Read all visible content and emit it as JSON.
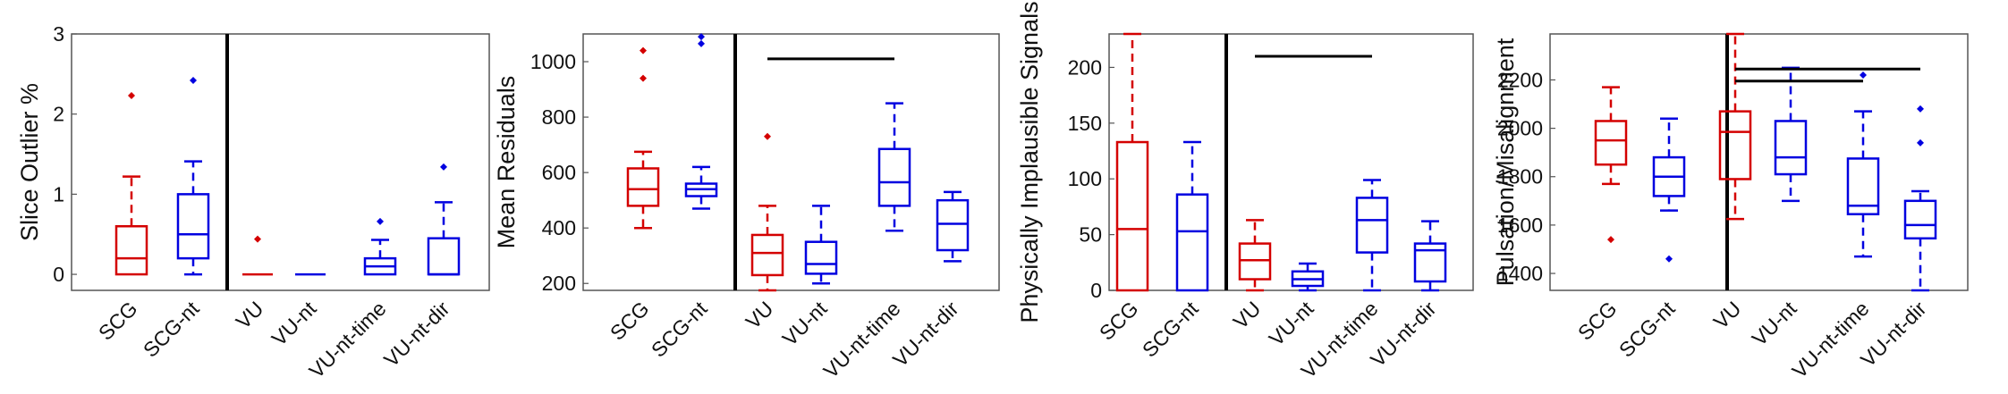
{
  "colors": {
    "SCG": "#d40000",
    "SCG-nt": "#0000e0",
    "VU": "#d40000",
    "VU-nt": "#0000e0",
    "VU-nt-time": "#0000e0",
    "VU-nt-dir": "#0000e0",
    "divider": "#000000",
    "frame": "#555555"
  },
  "chart_data": [
    {
      "type": "box",
      "ylabel": "Slice Outlier %",
      "ylim": [
        -0.2,
        3.0
      ],
      "yticks": [
        0,
        1,
        2,
        3
      ],
      "categories": [
        "SCG",
        "SCG-nt",
        "VU",
        "VU-nt",
        "VU-nt-time",
        "VU-nt-dir"
      ],
      "divider_after": 1,
      "boxes": [
        {
          "q1": 0.0,
          "median": 0.2,
          "q3": 0.6,
          "low": 0.0,
          "high": 1.22,
          "outliers": [
            2.23
          ]
        },
        {
          "q1": 0.2,
          "median": 0.5,
          "q3": 1.0,
          "low": 0.0,
          "high": 1.41,
          "outliers": [
            2.42
          ]
        },
        {
          "q1": 0.0,
          "median": 0.0,
          "q3": 0.0,
          "low": 0.0,
          "high": 0.0,
          "outliers": [
            0.44
          ]
        },
        {
          "q1": 0.0,
          "median": 0.0,
          "q3": 0.0,
          "low": 0.0,
          "high": 0.0,
          "outliers": []
        },
        {
          "q1": 0.0,
          "median": 0.1,
          "q3": 0.2,
          "low": 0.0,
          "high": 0.43,
          "outliers": [
            0.66
          ]
        },
        {
          "q1": 0.0,
          "median": 0.0,
          "q3": 0.45,
          "low": 0.0,
          "high": 0.9,
          "outliers": [
            1.34
          ]
        }
      ],
      "sig_bars": []
    },
    {
      "type": "box",
      "ylabel": "Mean Residuals",
      "ylim": [
        175,
        1100
      ],
      "yticks": [
        200,
        400,
        600,
        800,
        1000
      ],
      "categories": [
        "SCG",
        "SCG-nt",
        "VU",
        "VU-nt",
        "VU-nt-time",
        "VU-nt-dir"
      ],
      "divider_after": 1,
      "boxes": [
        {
          "q1": 480,
          "median": 540,
          "q3": 615,
          "low": 400,
          "high": 675,
          "outliers": [
            940,
            1040
          ]
        },
        {
          "q1": 515,
          "median": 540,
          "q3": 560,
          "low": 470,
          "high": 620,
          "outliers": [
            1065,
            1090
          ]
        },
        {
          "q1": 230,
          "median": 310,
          "q3": 375,
          "low": 175,
          "high": 480,
          "outliers": [
            730
          ]
        },
        {
          "q1": 235,
          "median": 270,
          "q3": 350,
          "low": 200,
          "high": 480,
          "outliers": []
        },
        {
          "q1": 480,
          "median": 565,
          "q3": 685,
          "low": 390,
          "high": 850,
          "outliers": []
        },
        {
          "q1": 320,
          "median": 415,
          "q3": 500,
          "low": 280,
          "high": 530,
          "outliers": []
        }
      ],
      "sig_bars": [
        {
          "from": 2,
          "to": 4,
          "y": 1010
        }
      ]
    },
    {
      "type": "box",
      "ylabel": "Physically Implausible Signals",
      "ylim": [
        0,
        230
      ],
      "yticks": [
        0,
        50,
        100,
        150,
        200
      ],
      "categories": [
        "SCG",
        "SCG-nt",
        "VU",
        "VU-nt",
        "VU-nt-time",
        "VU-nt-dir"
      ],
      "divider_after": 1,
      "boxes": [
        {
          "q1": 0,
          "median": 55,
          "q3": 133,
          "low": 0,
          "high": 230,
          "outliers": []
        },
        {
          "q1": 0,
          "median": 53,
          "q3": 86,
          "low": 0,
          "high": 133,
          "outliers": []
        },
        {
          "q1": 10,
          "median": 27,
          "q3": 42,
          "low": 0,
          "high": 63,
          "outliers": []
        },
        {
          "q1": 4,
          "median": 10,
          "q3": 17,
          "low": 0,
          "high": 24,
          "outliers": []
        },
        {
          "q1": 34,
          "median": 63,
          "q3": 83,
          "low": 0,
          "high": 99,
          "outliers": []
        },
        {
          "q1": 8,
          "median": 36,
          "q3": 42,
          "low": 0,
          "high": 62,
          "outliers": []
        }
      ],
      "sig_bars": [
        {
          "from": 2,
          "to": 4,
          "y": 210
        }
      ]
    },
    {
      "type": "box",
      "ylabel": "Pulsation/Misalignment",
      "ylim": [
        1330,
        2390
      ],
      "yticks": [
        1400,
        1600,
        1800,
        2000,
        2200
      ],
      "categories": [
        "SCG",
        "SCG-nt",
        "VU",
        "VU-nt",
        "VU-nt-time",
        "VU-nt-dir"
      ],
      "divider_after": 1,
      "boxes": [
        {
          "q1": 1850,
          "median": 1950,
          "q3": 2030,
          "low": 1770,
          "high": 2170,
          "outliers": [
            1540
          ]
        },
        {
          "q1": 1720,
          "median": 1800,
          "q3": 1880,
          "low": 1660,
          "high": 2040,
          "outliers": [
            1460
          ]
        },
        {
          "q1": 1790,
          "median": 1985,
          "q3": 2070,
          "low": 1625,
          "high": 2390,
          "outliers": []
        },
        {
          "q1": 1810,
          "median": 1880,
          "q3": 2030,
          "low": 1700,
          "high": 2250,
          "outliers": []
        },
        {
          "q1": 1645,
          "median": 1680,
          "q3": 1875,
          "low": 1470,
          "high": 2070,
          "outliers": [
            2220
          ]
        },
        {
          "q1": 1545,
          "median": 1600,
          "q3": 1700,
          "low": 1330,
          "high": 1740,
          "outliers": [
            1940,
            2080
          ]
        }
      ],
      "sig_bars": [
        {
          "from": 2,
          "to": 4,
          "y": 2195
        },
        {
          "from": 2,
          "to": 5,
          "y": 2245
        }
      ]
    }
  ]
}
